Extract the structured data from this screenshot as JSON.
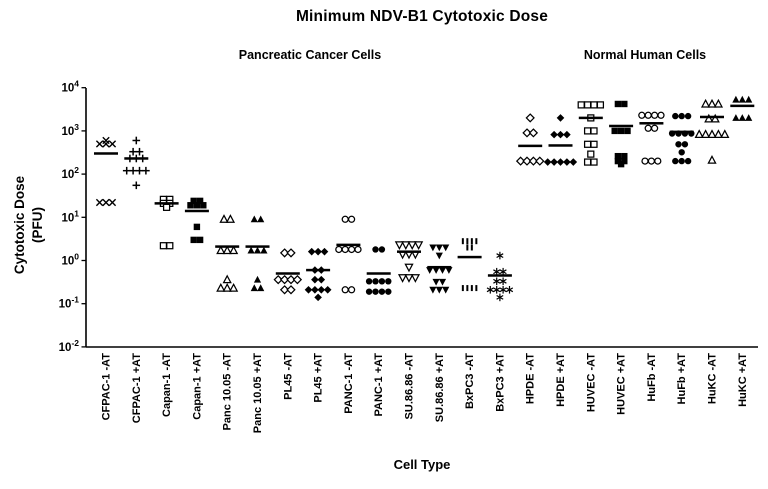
{
  "title": "Minimum NDV-B1 Cytotoxic Dose",
  "group_labels": {
    "left": "Pancreatic Cancer Cells",
    "right": "Normal Human Cells"
  },
  "axes": {
    "y_label_line1": "Cytotoxic Dose",
    "y_label_line2": "(PFU)",
    "x_label": "Cell Type",
    "y_tick_exponents": [
      4,
      3,
      2,
      1,
      0,
      -1,
      -2
    ],
    "y_tick_base": "10"
  },
  "colors": {
    "foreground": "#000000",
    "background": "#ffffff"
  },
  "chart_data": {
    "type": "scatter",
    "y_scale": "log10",
    "ylim": [
      0.01,
      10000
    ],
    "ylabel": "Cytotoxic Dose (PFU)",
    "xlabel": "Cell Type",
    "grid": false,
    "legend": "none",
    "points_format": "[PFU_value, point_count_at_value]",
    "categories": [
      {
        "label": "CFPAC-1 -AT",
        "group": "pancreatic",
        "marker": "x",
        "median": 300,
        "points": [
          [
            600,
            1
          ],
          [
            500,
            3
          ],
          [
            22,
            3
          ]
        ]
      },
      {
        "label": "CFPAC-1 +AT",
        "group": "pancreatic",
        "marker": "plus",
        "median": 230,
        "points": [
          [
            600,
            1
          ],
          [
            330,
            2
          ],
          [
            230,
            3
          ],
          [
            120,
            4
          ],
          [
            55,
            1
          ]
        ]
      },
      {
        "label": "Capan-1 -AT",
        "group": "pancreatic",
        "marker": "square-open",
        "median": 21,
        "points": [
          [
            26,
            2
          ],
          [
            21,
            2
          ],
          [
            17,
            1
          ],
          [
            2.2,
            2
          ]
        ]
      },
      {
        "label": "Capan-1 +AT",
        "group": "pancreatic",
        "marker": "square-filled",
        "median": 14,
        "points": [
          [
            24,
            2
          ],
          [
            19,
            3
          ],
          [
            6,
            1
          ],
          [
            3,
            2
          ]
        ]
      },
      {
        "label": "Panc 10.05 -AT",
        "group": "pancreatic",
        "marker": "triangle-open",
        "median": 2.1,
        "points": [
          [
            9,
            2
          ],
          [
            1.7,
            3
          ],
          [
            0.36,
            1
          ],
          [
            0.23,
            3
          ]
        ]
      },
      {
        "label": "Panc 10.05 +AT",
        "group": "pancreatic",
        "marker": "triangle-filled",
        "median": 2.1,
        "points": [
          [
            9,
            2
          ],
          [
            1.7,
            3
          ],
          [
            0.36,
            1
          ],
          [
            0.23,
            2
          ]
        ]
      },
      {
        "label": "PL45 -AT",
        "group": "pancreatic",
        "marker": "diamond-open",
        "median": 0.5,
        "points": [
          [
            1.5,
            2
          ],
          [
            0.36,
            4
          ],
          [
            0.21,
            2
          ]
        ]
      },
      {
        "label": "PL45 +AT",
        "group": "pancreatic",
        "marker": "diamond-filled",
        "median": 0.6,
        "points": [
          [
            1.6,
            3
          ],
          [
            0.6,
            2
          ],
          [
            0.36,
            2
          ],
          [
            0.21,
            4
          ],
          [
            0.14,
            1
          ]
        ]
      },
      {
        "label": "PANC-1 -AT",
        "group": "pancreatic",
        "marker": "circle-open",
        "median": 2.3,
        "points": [
          [
            9,
            2
          ],
          [
            1.8,
            4
          ],
          [
            0.21,
            2
          ]
        ]
      },
      {
        "label": "PANC-1 +AT",
        "group": "pancreatic",
        "marker": "circle-filled",
        "median": 0.5,
        "points": [
          [
            1.8,
            2
          ],
          [
            0.33,
            4
          ],
          [
            0.19,
            4
          ]
        ]
      },
      {
        "label": "SU.86.86 -AT",
        "group": "pancreatic",
        "marker": "tri-down-open",
        "median": 1.6,
        "points": [
          [
            2.3,
            4
          ],
          [
            1.4,
            3
          ],
          [
            0.7,
            1
          ],
          [
            0.4,
            3
          ]
        ]
      },
      {
        "label": "SU.86.86 +AT",
        "group": "pancreatic",
        "marker": "tri-down-filled",
        "median": 0.7,
        "points": [
          [
            2.0,
            3
          ],
          [
            1.3,
            1
          ],
          [
            0.6,
            4
          ],
          [
            0.32,
            2
          ],
          [
            0.21,
            3
          ]
        ]
      },
      {
        "label": "BxPC3 -AT",
        "group": "pancreatic",
        "marker": "vbar",
        "median": 1.2,
        "points": [
          [
            2.8,
            4
          ],
          [
            2.0,
            2
          ],
          [
            0.23,
            4
          ]
        ]
      },
      {
        "label": "BxPC3 +AT",
        "group": "pancreatic",
        "marker": "asterisk",
        "median": 0.45,
        "points": [
          [
            1.3,
            1
          ],
          [
            0.55,
            2
          ],
          [
            0.33,
            2
          ],
          [
            0.21,
            4
          ],
          [
            0.14,
            1
          ]
        ]
      },
      {
        "label": "HPDE -AT",
        "group": "normal",
        "marker": "diamond-open",
        "median": 450,
        "points": [
          [
            2000,
            1
          ],
          [
            900,
            2
          ],
          [
            200,
            4
          ]
        ]
      },
      {
        "label": "HPDE +AT",
        "group": "normal",
        "marker": "diamond-filled",
        "median": 460,
        "points": [
          [
            2000,
            1
          ],
          [
            820,
            3
          ],
          [
            190,
            5
          ]
        ]
      },
      {
        "label": "HUVEC -AT",
        "group": "normal",
        "marker": "square-open",
        "median": 2000,
        "points": [
          [
            4000,
            4
          ],
          [
            2000,
            1
          ],
          [
            1000,
            2
          ],
          [
            490,
            2
          ],
          [
            290,
            1
          ],
          [
            190,
            2
          ]
        ]
      },
      {
        "label": "HUVEC +AT",
        "group": "normal",
        "marker": "square-filled",
        "median": 1300,
        "points": [
          [
            4200,
            2
          ],
          [
            1000,
            3
          ],
          [
            260,
            2
          ],
          [
            200,
            2
          ],
          [
            170,
            1
          ]
        ]
      },
      {
        "label": "HuFb -AT",
        "group": "normal",
        "marker": "circle-open",
        "median": 1500,
        "points": [
          [
            2300,
            4
          ],
          [
            1150,
            2
          ],
          [
            200,
            3
          ]
        ]
      },
      {
        "label": "HuFb +AT",
        "group": "normal",
        "marker": "circle-filled",
        "median": 950,
        "points": [
          [
            2200,
            3
          ],
          [
            870,
            4
          ],
          [
            490,
            2
          ],
          [
            320,
            1
          ],
          [
            200,
            3
          ]
        ]
      },
      {
        "label": "HuKC -AT",
        "group": "normal",
        "marker": "triangle-open",
        "median": 2100,
        "points": [
          [
            4200,
            3
          ],
          [
            1900,
            2
          ],
          [
            830,
            5
          ],
          [
            210,
            1
          ]
        ]
      },
      {
        "label": "HuKC +AT",
        "group": "normal",
        "marker": "triangle-filled",
        "median": 3800,
        "points": [
          [
            5300,
            3
          ],
          [
            2000,
            3
          ]
        ]
      }
    ]
  }
}
